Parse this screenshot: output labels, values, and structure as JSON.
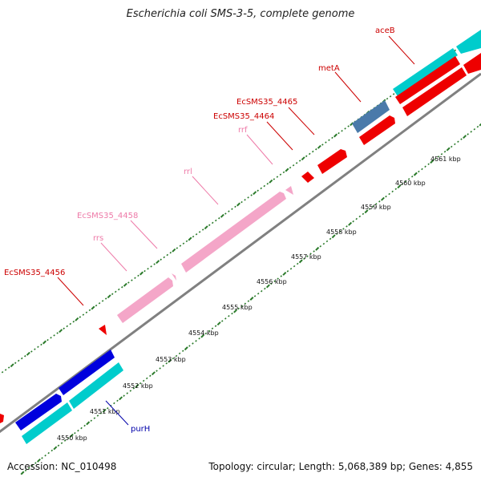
{
  "title": "Escherichia coli SMS-3-5, complete genome",
  "footer": {
    "accession": "Accession: NC_010498",
    "info": "Topology: circular; Length: 5,068,389 bp; Genes: 4,855"
  },
  "colors": {
    "backbone": "#808080",
    "tick": "#2a7a2a",
    "gene_label_red": "#cc0000",
    "gene_label_pink": "#ee7aa8",
    "gene_label_blue": "#0000aa",
    "cds_red": "#ee0000",
    "cds_blue": "#0000dd",
    "cds_cyan": "#00cccc",
    "rrna_pink": "#f4a6c8",
    "misc_steelblue": "#4a7aaa"
  },
  "scale": {
    "labels": [
      "4550 kbp",
      "4551 kbp",
      "4552 kbp",
      "4553 kbp",
      "4554 kbp",
      "4555 kbp",
      "4556 kbp",
      "4557 kbp",
      "4558 kbp",
      "4559 kbp",
      "4560 kbp",
      "4561 kbp"
    ]
  },
  "gene_labels": [
    {
      "text": "aceB",
      "color": "#cc0000"
    },
    {
      "text": "metA",
      "color": "#cc0000"
    },
    {
      "text": "EcSMS35_4465",
      "color": "#cc0000"
    },
    {
      "text": "EcSMS35_4464",
      "color": "#cc0000"
    },
    {
      "text": "rrf",
      "color": "#ee7aa8"
    },
    {
      "text": "rrl",
      "color": "#ee7aa8"
    },
    {
      "text": "EcSMS35_4458",
      "color": "#ee7aa8"
    },
    {
      "text": "rrs",
      "color": "#ee7aa8"
    },
    {
      "text": "EcSMS35_4456",
      "color": "#cc0000"
    },
    {
      "text": "purH",
      "color": "#0000aa"
    }
  ]
}
